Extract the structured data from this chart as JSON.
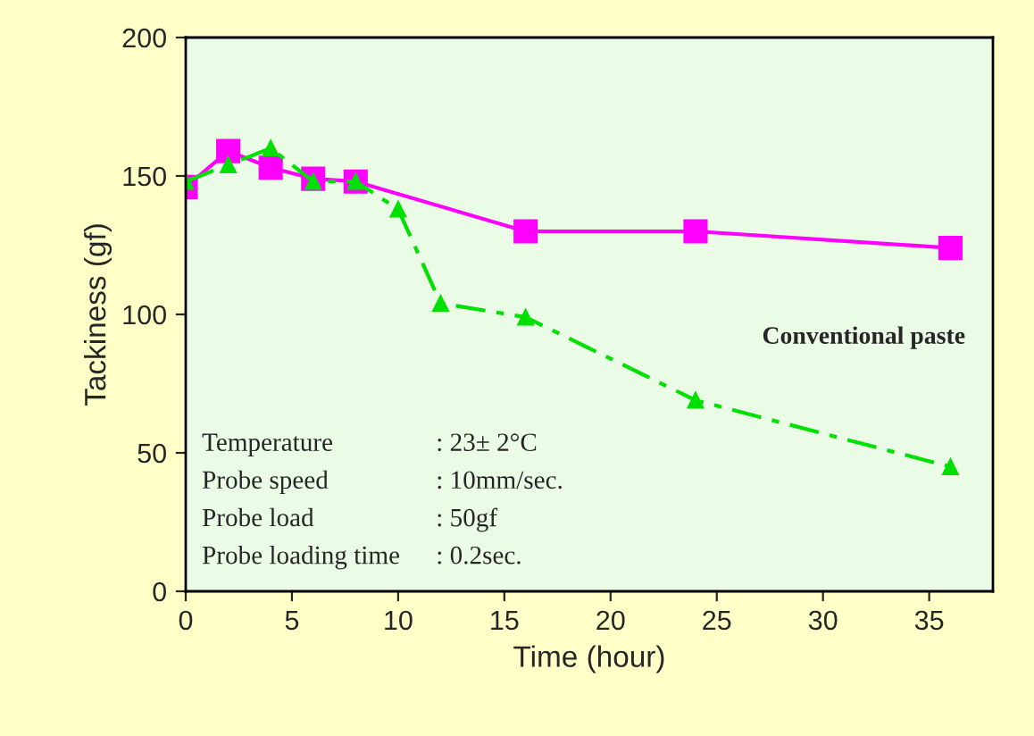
{
  "chart_data": {
    "type": "line",
    "xlabel": "Time (hour)",
    "ylabel": "Tackiness (gf)",
    "xlim": [
      0,
      38
    ],
    "xticks": [
      0,
      5,
      10,
      15,
      20,
      25,
      30,
      35
    ],
    "ylim": [
      0,
      200
    ],
    "yticks": [
      0,
      50,
      100,
      150,
      200
    ],
    "grid": false,
    "legend": false,
    "series": [
      {
        "color": "#ff00ff",
        "marker": "square",
        "line_style": "solid",
        "x": [
          0,
          2,
          4,
          6,
          8,
          16,
          24,
          36
        ],
        "values": [
          146,
          159,
          153,
          149,
          148,
          130,
          130,
          124
        ]
      },
      {
        "name": "Conventional paste",
        "color": "#00e000",
        "marker": "triangle",
        "line_style": "dashed",
        "x": [
          0,
          2,
          4,
          6,
          8,
          10,
          12,
          16,
          24,
          36
        ],
        "values": [
          148,
          154,
          160,
          148,
          148,
          138,
          104,
          99,
          69,
          45
        ]
      }
    ],
    "annotations": [
      "Temperature",
      ": 23± 2°C",
      "Probe speed",
      ": 10mm/sec.",
      "Probe load",
      ": 50gf",
      "Probe loading time",
      ": 0.2sec."
    ]
  }
}
